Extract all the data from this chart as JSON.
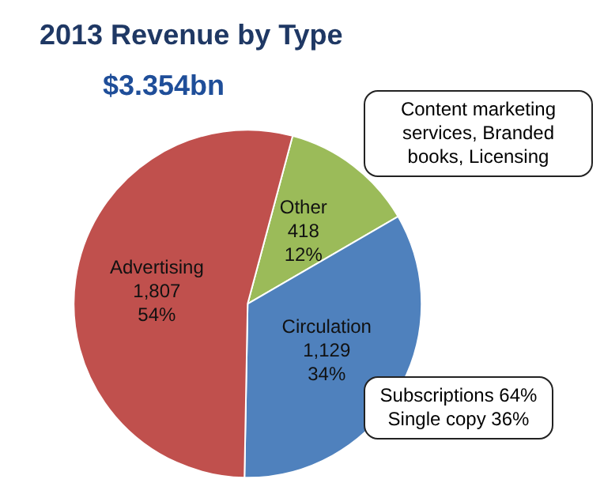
{
  "chart_data": {
    "type": "pie",
    "title": "2013 Revenue by Type",
    "subtitle": "$3.354bn",
    "categories": [
      "Other",
      "Circulation",
      "Advertising"
    ],
    "values": [
      418,
      1129,
      1807
    ],
    "value_labels": [
      "418\n12%",
      "1,129\n34%",
      "1,807\n54%"
    ],
    "colors": [
      "#9bbb59",
      "#4f81bd",
      "#c0504d"
    ],
    "annotations": [
      "Content marketing services, Branded books, Licensing",
      "Subscriptions 64% Single copy 36%"
    ],
    "legend": false
  }
}
